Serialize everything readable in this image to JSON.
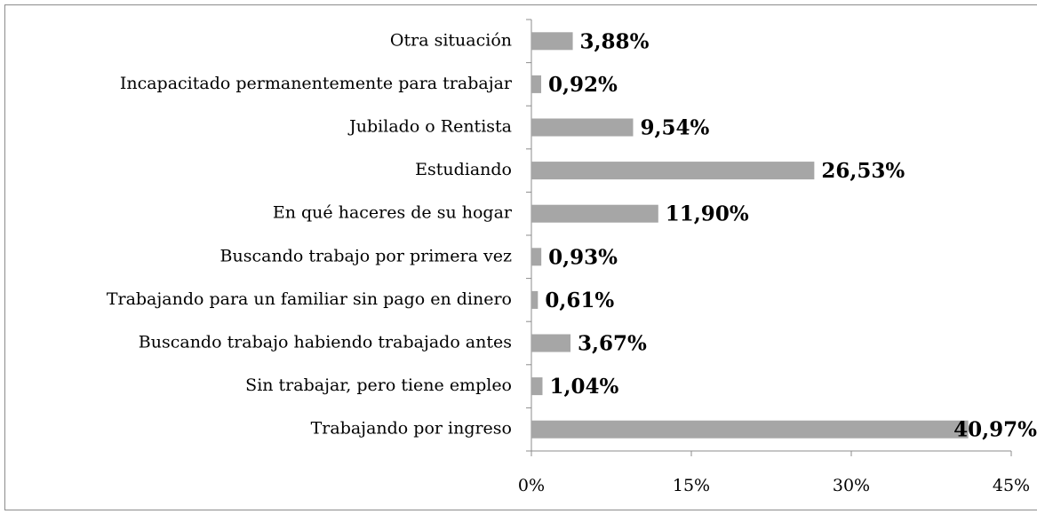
{
  "chart_data": {
    "type": "bar",
    "orientation": "horizontal",
    "categories": [
      "Otra situación",
      "Incapacitado permanentemente para trabajar",
      "Jubilado o Rentista",
      "Estudiando",
      "En qué haceres de su hogar",
      "Buscando trabajo por primera vez",
      "Trabajando para un familiar sin pago en dinero",
      "Buscando trabajo habiendo trabajado antes",
      "Sin trabajar, pero tiene empleo",
      "Trabajando por ingreso"
    ],
    "values": [
      3.88,
      0.92,
      9.54,
      26.53,
      11.9,
      0.93,
      0.61,
      3.67,
      1.04,
      40.97
    ],
    "value_labels": [
      "3,88%",
      "0,92%",
      "9,54%",
      "26,53%",
      "11,90%",
      "0,93%",
      "0,61%",
      "3,67%",
      "1,04%",
      "40,97%"
    ],
    "color": "#a6a6a6",
    "xlim": [
      0,
      45
    ],
    "xticks": [
      {
        "value": 0,
        "label": "0%"
      },
      {
        "value": 15,
        "label": "15%"
      },
      {
        "value": 30,
        "label": "30%"
      },
      {
        "value": 45,
        "label": "45%"
      }
    ],
    "grid": false
  }
}
